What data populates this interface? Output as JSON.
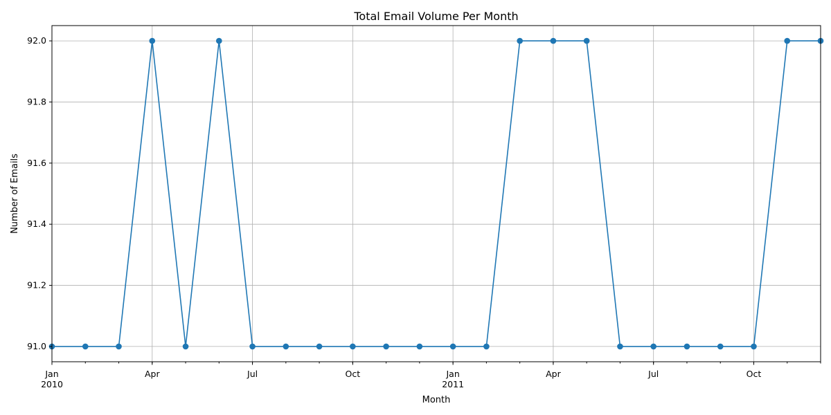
{
  "chart_data": {
    "type": "line",
    "title": "Total Email Volume Per Month",
    "xlabel": "Month",
    "ylabel": "Number of Emails",
    "ylim": [
      90.95,
      92.05
    ],
    "xlim": [
      "2010-01",
      "2011-12"
    ],
    "grid": true,
    "x_major_ticks": [
      {
        "date": "2010-01",
        "label": "Jan",
        "sublabel": "2010"
      },
      {
        "date": "2010-04",
        "label": "Apr",
        "sublabel": ""
      },
      {
        "date": "2010-07",
        "label": "Jul",
        "sublabel": ""
      },
      {
        "date": "2010-10",
        "label": "Oct",
        "sublabel": ""
      },
      {
        "date": "2011-01",
        "label": "Jan",
        "sublabel": "2011"
      },
      {
        "date": "2011-04",
        "label": "Apr",
        "sublabel": ""
      },
      {
        "date": "2011-07",
        "label": "Jul",
        "sublabel": ""
      },
      {
        "date": "2011-10",
        "label": "Oct",
        "sublabel": ""
      }
    ],
    "y_ticks": [
      "91.0",
      "91.2",
      "91.4",
      "91.6",
      "91.8",
      "92.0"
    ],
    "series": [
      {
        "color": "#1f77b4",
        "marker": "circle",
        "x": [
          "2010-01",
          "2010-02",
          "2010-03",
          "2010-04",
          "2010-05",
          "2010-06",
          "2010-07",
          "2010-08",
          "2010-09",
          "2010-10",
          "2010-11",
          "2010-12",
          "2011-01",
          "2011-02",
          "2011-03",
          "2011-04",
          "2011-05",
          "2011-06",
          "2011-07",
          "2011-08",
          "2011-09",
          "2011-10",
          "2011-11",
          "2011-12"
        ],
        "values": [
          91,
          91,
          91,
          92,
          91,
          92,
          91,
          91,
          91,
          91,
          91,
          91,
          91,
          91,
          92,
          92,
          92,
          91,
          91,
          91,
          91,
          91,
          92,
          92
        ]
      }
    ]
  }
}
